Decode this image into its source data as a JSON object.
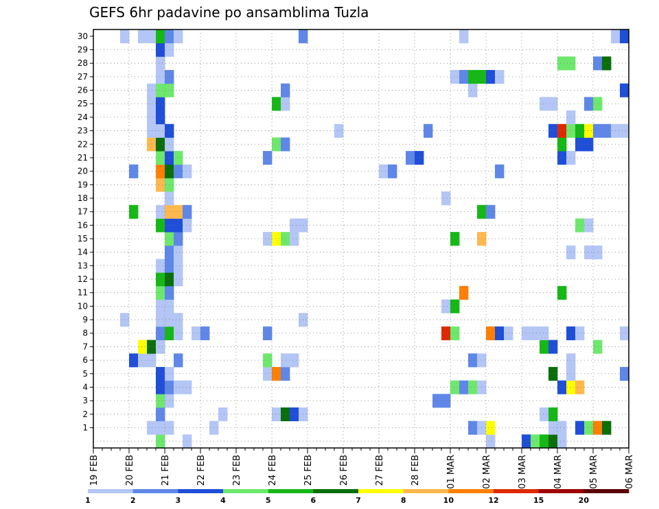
{
  "chart_data": {
    "type": "heatmap",
    "title": "GEFS 6hr padavine po ansamblima Tuzla",
    "x_range": [
      "19 FEB 00Z",
      "06 MAR 00Z"
    ],
    "x_step_hours": 6,
    "y_range": [
      0,
      30
    ],
    "grid": true,
    "x_ticks": [
      "19 FEB",
      "20 FEB",
      "21 FEB",
      "22 FEB",
      "23 FEB",
      "24 FEB",
      "25 FEB",
      "26 FEB",
      "27 FEB",
      "28 FEB",
      "01 MAR",
      "02 MAR",
      "03 MAR",
      "04 MAR",
      "05 MAR",
      "06 MAR"
    ],
    "y_ticks": [
      1,
      2,
      3,
      4,
      5,
      6,
      7,
      8,
      9,
      10,
      11,
      12,
      13,
      14,
      15,
      16,
      17,
      18,
      19,
      20,
      21,
      22,
      23,
      24,
      25,
      26,
      27,
      28,
      29,
      30
    ],
    "legend": {
      "placement": "bottom",
      "labels": [
        "1",
        "2",
        "3",
        "4",
        "5",
        "6",
        "7",
        "8",
        "10",
        "12",
        "15",
        "20"
      ],
      "colors": [
        "#b3c6f5",
        "#5f87e8",
        "#1f4ed8",
        "#6de86d",
        "#16b816",
        "#0a6e0a",
        "#ffff00",
        "#ffb84d",
        "#ff7f00",
        "#dd2a00",
        "#a00000",
        "#5a0000"
      ]
    },
    "cells": [
      [
        0,
        "20 FEB 18Z",
        4
      ],
      [
        0,
        "21 FEB 12Z",
        1
      ],
      [
        0,
        "02 MAR 00Z",
        1
      ],
      [
        0,
        "03 MAR 00Z",
        3
      ],
      [
        0,
        "03 MAR 06Z",
        4
      ],
      [
        0,
        "03 MAR 12Z",
        5
      ],
      [
        0,
        "03 MAR 18Z",
        6
      ],
      [
        0,
        "04 MAR 00Z",
        1
      ],
      [
        1,
        "20 FEB 18Z",
        1
      ],
      [
        1,
        "20 FEB 12Z",
        1
      ],
      [
        1,
        "21 FEB 00Z",
        1
      ],
      [
        1,
        "22 FEB 06Z",
        1
      ],
      [
        1,
        "01 MAR 12Z",
        2
      ],
      [
        1,
        "01 MAR 18Z",
        1
      ],
      [
        1,
        "02 MAR 00Z",
        7
      ],
      [
        1,
        "03 MAR 18Z",
        1
      ],
      [
        1,
        "04 MAR 00Z",
        1
      ],
      [
        1,
        "04 MAR 12Z",
        3
      ],
      [
        1,
        "04 MAR 18Z",
        4
      ],
      [
        1,
        "05 MAR 00Z",
        9
      ],
      [
        1,
        "05 MAR 06Z",
        6
      ],
      [
        2,
        "20 FEB 18Z",
        2
      ],
      [
        2,
        "22 FEB 12Z",
        1
      ],
      [
        2,
        "24 FEB 00Z",
        1
      ],
      [
        2,
        "24 FEB 06Z",
        6
      ],
      [
        2,
        "24 FEB 12Z",
        3
      ],
      [
        2,
        "24 FEB 18Z",
        1
      ],
      [
        2,
        "03 MAR 12Z",
        1
      ],
      [
        2,
        "03 MAR 18Z",
        5
      ],
      [
        3,
        "20 FEB 18Z",
        4
      ],
      [
        3,
        "21 FEB 00Z",
        1
      ],
      [
        3,
        "28 FEB 12Z",
        2
      ],
      [
        3,
        "28 FEB 18Z",
        2
      ],
      [
        4,
        "20 FEB 18Z",
        3
      ],
      [
        4,
        "21 FEB 00Z",
        2
      ],
      [
        4,
        "21 FEB 06Z",
        1
      ],
      [
        4,
        "21 FEB 12Z",
        1
      ],
      [
        4,
        "01 MAR 00Z",
        4
      ],
      [
        4,
        "01 MAR 06Z",
        2
      ],
      [
        4,
        "01 MAR 12Z",
        4
      ],
      [
        4,
        "01 MAR 18Z",
        1
      ],
      [
        4,
        "04 MAR 00Z",
        3
      ],
      [
        4,
        "04 MAR 06Z",
        7
      ],
      [
        4,
        "04 MAR 12Z",
        8
      ],
      [
        5,
        "20 FEB 18Z",
        3
      ],
      [
        5,
        "21 FEB 00Z",
        1
      ],
      [
        5,
        "23 FEB 18Z",
        1
      ],
      [
        5,
        "24 FEB 00Z",
        9
      ],
      [
        5,
        "24 FEB 06Z",
        2
      ],
      [
        5,
        "03 MAR 18Z",
        6
      ],
      [
        5,
        "04 MAR 06Z",
        1
      ],
      [
        5,
        "05 MAR 18Z",
        2
      ],
      [
        6,
        "20 FEB 00Z",
        3
      ],
      [
        6,
        "20 FEB 06Z",
        1
      ],
      [
        6,
        "20 FEB 12Z",
        1
      ],
      [
        6,
        "21 FEB 06Z",
        2
      ],
      [
        6,
        "23 FEB 18Z",
        4
      ],
      [
        6,
        "24 FEB 06Z",
        1
      ],
      [
        6,
        "24 FEB 12Z",
        1
      ],
      [
        6,
        "01 MAR 12Z",
        2
      ],
      [
        6,
        "01 MAR 18Z",
        1
      ],
      [
        6,
        "04 MAR 06Z",
        1
      ],
      [
        7,
        "20 FEB 06Z",
        7
      ],
      [
        7,
        "20 FEB 12Z",
        6
      ],
      [
        7,
        "20 FEB 18Z",
        1
      ],
      [
        7,
        "03 MAR 12Z",
        5
      ],
      [
        7,
        "03 MAR 18Z",
        3
      ],
      [
        7,
        "05 MAR 00Z",
        4
      ],
      [
        8,
        "20 FEB 18Z",
        2
      ],
      [
        8,
        "21 FEB 00Z",
        5
      ],
      [
        8,
        "21 FEB 06Z",
        1
      ],
      [
        8,
        "21 FEB 18Z",
        1
      ],
      [
        8,
        "22 FEB 00Z",
        2
      ],
      [
        8,
        "23 FEB 18Z",
        2
      ],
      [
        8,
        "28 FEB 18Z",
        10
      ],
      [
        8,
        "01 MAR 00Z",
        4
      ],
      [
        8,
        "02 MAR 00Z",
        9
      ],
      [
        8,
        "02 MAR 06Z",
        3
      ],
      [
        8,
        "02 MAR 12Z",
        1
      ],
      [
        8,
        "03 MAR 00Z",
        1
      ],
      [
        8,
        "03 MAR 06Z",
        1
      ],
      [
        8,
        "03 MAR 12Z",
        1
      ],
      [
        8,
        "04 MAR 06Z",
        3
      ],
      [
        8,
        "04 MAR 12Z",
        1
      ],
      [
        8,
        "05 MAR 18Z",
        1
      ],
      [
        9,
        "19 FEB 18Z",
        1
      ],
      [
        9,
        "20 FEB 18Z",
        1
      ],
      [
        9,
        "21 FEB 00Z",
        1
      ],
      [
        9,
        "21 FEB 06Z",
        1
      ],
      [
        9,
        "24 FEB 18Z",
        1
      ],
      [
        10,
        "20 FEB 18Z",
        1
      ],
      [
        10,
        "21 FEB 00Z",
        1
      ],
      [
        10,
        "28 FEB 18Z",
        1
      ],
      [
        10,
        "01 MAR 00Z",
        5
      ],
      [
        11,
        "20 FEB 18Z",
        4
      ],
      [
        11,
        "21 FEB 00Z",
        2
      ],
      [
        11,
        "01 MAR 06Z",
        9
      ],
      [
        11,
        "04 MAR 00Z",
        5
      ],
      [
        12,
        "20 FEB 18Z",
        5
      ],
      [
        12,
        "21 FEB 00Z",
        6
      ],
      [
        12,
        "21 FEB 06Z",
        1
      ],
      [
        13,
        "20 FEB 18Z",
        1
      ],
      [
        13,
        "21 FEB 00Z",
        2
      ],
      [
        13,
        "21 FEB 06Z",
        1
      ],
      [
        14,
        "21 FEB 00Z",
        2
      ],
      [
        14,
        "21 FEB 06Z",
        1
      ],
      [
        14,
        "04 MAR 06Z",
        1
      ],
      [
        14,
        "04 MAR 18Z",
        1
      ],
      [
        14,
        "05 MAR 00Z",
        1
      ],
      [
        15,
        "21 FEB 00Z",
        4
      ],
      [
        15,
        "21 FEB 06Z",
        2
      ],
      [
        15,
        "23 FEB 18Z",
        1
      ],
      [
        15,
        "24 FEB 00Z",
        7
      ],
      [
        15,
        "24 FEB 06Z",
        4
      ],
      [
        15,
        "24 FEB 12Z",
        1
      ],
      [
        15,
        "01 MAR 00Z",
        5
      ],
      [
        15,
        "01 MAR 18Z",
        8
      ],
      [
        16,
        "20 FEB 18Z",
        5
      ],
      [
        16,
        "21 FEB 00Z",
        3
      ],
      [
        16,
        "21 FEB 06Z",
        3
      ],
      [
        16,
        "21 FEB 12Z",
        1
      ],
      [
        16,
        "24 FEB 12Z",
        1
      ],
      [
        16,
        "24 FEB 18Z",
        1
      ],
      [
        16,
        "04 MAR 12Z",
        4
      ],
      [
        16,
        "04 MAR 18Z",
        1
      ],
      [
        17,
        "20 FEB 00Z",
        5
      ],
      [
        17,
        "20 FEB 18Z",
        1
      ],
      [
        17,
        "21 FEB 00Z",
        8
      ],
      [
        17,
        "21 FEB 06Z",
        8
      ],
      [
        17,
        "21 FEB 12Z",
        2
      ],
      [
        17,
        "01 MAR 18Z",
        5
      ],
      [
        17,
        "02 MAR 00Z",
        2
      ],
      [
        18,
        "21 FEB 00Z",
        1
      ],
      [
        18,
        "28 FEB 18Z",
        1
      ],
      [
        19,
        "20 FEB 18Z",
        8
      ],
      [
        19,
        "21 FEB 00Z",
        4
      ],
      [
        20,
        "20 FEB 00Z",
        2
      ],
      [
        20,
        "20 FEB 18Z",
        9
      ],
      [
        20,
        "21 FEB 00Z",
        6
      ],
      [
        20,
        "21 FEB 06Z",
        2
      ],
      [
        20,
        "21 FEB 12Z",
        1
      ],
      [
        20,
        "27 FEB 00Z",
        1
      ],
      [
        20,
        "27 FEB 06Z",
        2
      ],
      [
        20,
        "02 MAR 06Z",
        2
      ],
      [
        21,
        "20 FEB 18Z",
        4
      ],
      [
        21,
        "21 FEB 00Z",
        3
      ],
      [
        21,
        "21 FEB 06Z",
        4
      ],
      [
        21,
        "23 FEB 18Z",
        2
      ],
      [
        21,
        "27 FEB 18Z",
        2
      ],
      [
        21,
        "28 FEB 00Z",
        3
      ],
      [
        21,
        "04 MAR 00Z",
        3
      ],
      [
        21,
        "04 MAR 06Z",
        1
      ],
      [
        22,
        "20 FEB 12Z",
        8
      ],
      [
        22,
        "20 FEB 18Z",
        6
      ],
      [
        22,
        "21 FEB 00Z",
        1
      ],
      [
        22,
        "24 FEB 00Z",
        4
      ],
      [
        22,
        "24 FEB 06Z",
        2
      ],
      [
        22,
        "04 MAR 00Z",
        5
      ],
      [
        22,
        "04 MAR 12Z",
        3
      ],
      [
        22,
        "04 MAR 18Z",
        3
      ],
      [
        23,
        "20 FEB 12Z",
        1
      ],
      [
        23,
        "20 FEB 18Z",
        1
      ],
      [
        23,
        "21 FEB 00Z",
        3
      ],
      [
        23,
        "25 FEB 18Z",
        1
      ],
      [
        23,
        "28 FEB 06Z",
        2
      ],
      [
        23,
        "03 MAR 18Z",
        3
      ],
      [
        23,
        "04 MAR 00Z",
        10
      ],
      [
        23,
        "04 MAR 06Z",
        4
      ],
      [
        23,
        "04 MAR 12Z",
        5
      ],
      [
        23,
        "04 MAR 18Z",
        7
      ],
      [
        23,
        "05 MAR 00Z",
        2
      ],
      [
        23,
        "05 MAR 06Z",
        2
      ],
      [
        23,
        "05 MAR 12Z",
        1
      ],
      [
        23,
        "05 MAR 18Z",
        1
      ],
      [
        24,
        "20 FEB 12Z",
        1
      ],
      [
        24,
        "20 FEB 18Z",
        3
      ],
      [
        24,
        "04 MAR 06Z",
        1
      ],
      [
        25,
        "20 FEB 12Z",
        1
      ],
      [
        25,
        "20 FEB 18Z",
        3
      ],
      [
        25,
        "24 FEB 00Z",
        5
      ],
      [
        25,
        "24 FEB 06Z",
        1
      ],
      [
        25,
        "03 MAR 12Z",
        1
      ],
      [
        25,
        "03 MAR 18Z",
        1
      ],
      [
        25,
        "04 MAR 18Z",
        2
      ],
      [
        25,
        "05 MAR 00Z",
        4
      ],
      [
        26,
        "20 FEB 12Z",
        1
      ],
      [
        26,
        "20 FEB 18Z",
        4
      ],
      [
        26,
        "21 FEB 00Z",
        4
      ],
      [
        26,
        "24 FEB 06Z",
        2
      ],
      [
        26,
        "01 MAR 12Z",
        1
      ],
      [
        26,
        "05 MAR 18Z",
        3
      ],
      [
        27,
        "20 FEB 18Z",
        1
      ],
      [
        27,
        "21 FEB 00Z",
        2
      ],
      [
        27,
        "01 MAR 00Z",
        1
      ],
      [
        27,
        "01 MAR 06Z",
        2
      ],
      [
        27,
        "01 MAR 12Z",
        5
      ],
      [
        27,
        "01 MAR 18Z",
        5
      ],
      [
        27,
        "02 MAR 00Z",
        3
      ],
      [
        27,
        "02 MAR 06Z",
        1
      ],
      [
        28,
        "20 FEB 18Z",
        1
      ],
      [
        28,
        "04 MAR 00Z",
        4
      ],
      [
        28,
        "04 MAR 06Z",
        4
      ],
      [
        28,
        "05 MAR 00Z",
        2
      ],
      [
        28,
        "05 MAR 06Z",
        6
      ],
      [
        29,
        "20 FEB 18Z",
        3
      ],
      [
        29,
        "21 FEB 00Z",
        1
      ],
      [
        30,
        "19 FEB 18Z",
        1
      ],
      [
        30,
        "20 FEB 06Z",
        1
      ],
      [
        30,
        "20 FEB 12Z",
        1
      ],
      [
        30,
        "20 FEB 18Z",
        5
      ],
      [
        30,
        "21 FEB 00Z",
        2
      ],
      [
        30,
        "21 FEB 06Z",
        1
      ],
      [
        30,
        "24 FEB 18Z",
        2
      ],
      [
        30,
        "01 MAR 06Z",
        1
      ],
      [
        30,
        "05 MAR 12Z",
        1
      ],
      [
        30,
        "05 MAR 18Z",
        3
      ]
    ]
  }
}
